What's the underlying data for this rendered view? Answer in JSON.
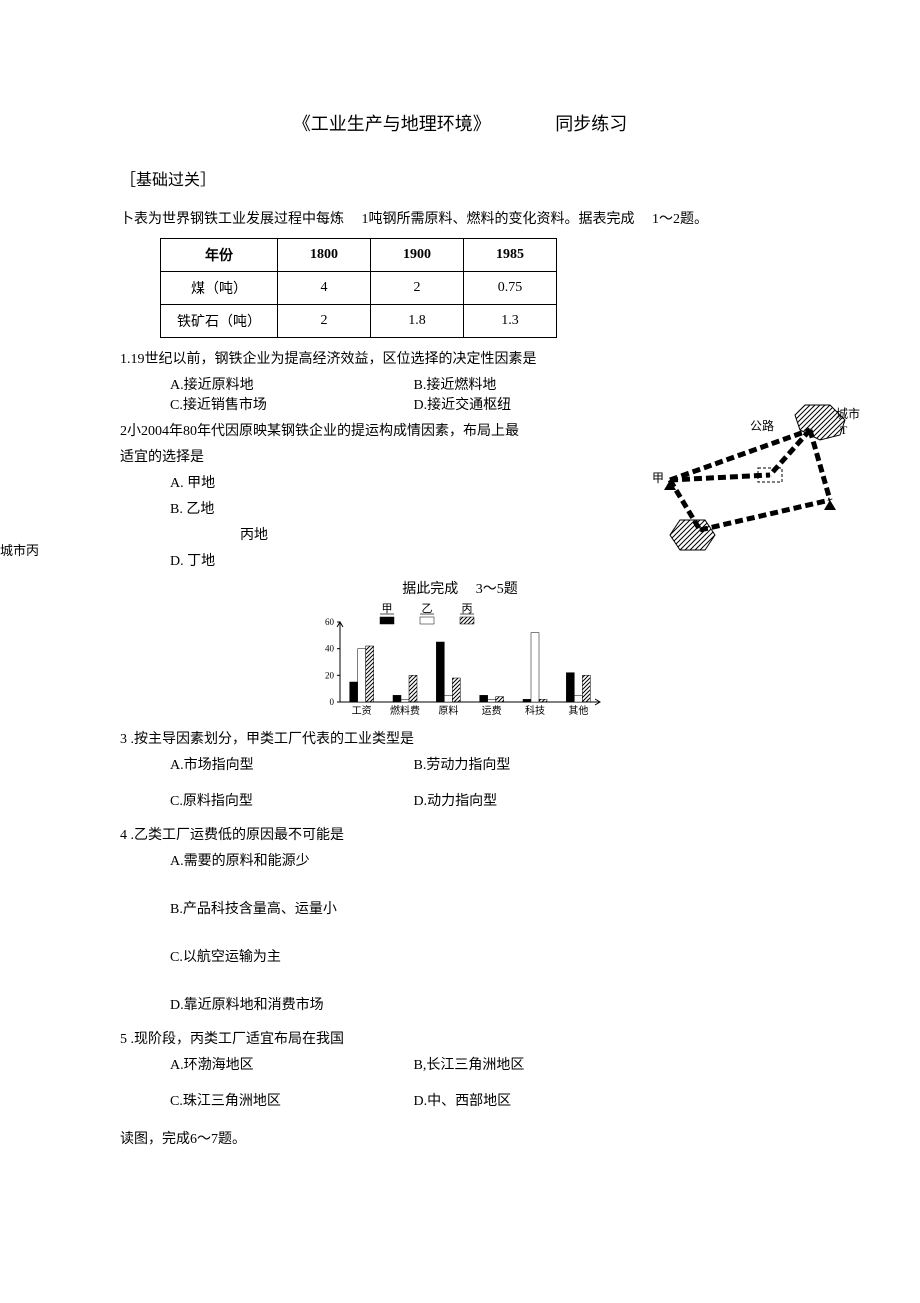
{
  "title": {
    "left": "《工业生产与地理环境》",
    "right": "同步练习"
  },
  "section_head": "［基础过关］",
  "intro1": {
    "pre": "卜表为世界钢铁工业发展过程中每炼",
    "mid": "1吨钢所需原料、燃料的变化资料。据表完成",
    "suf": "1〜2题。"
  },
  "table": {
    "headers": [
      "年份",
      "1800",
      "1900",
      "1985"
    ],
    "rows": [
      [
        "煤（吨）",
        "4",
        "2",
        "0.75"
      ],
      [
        "铁矿石（吨）",
        "2",
        "1.8",
        "1.3"
      ]
    ]
  },
  "q1": {
    "stem": "1.19世纪以前，钢铁企业为提高经济效益，区位选择的决定性因素是",
    "a": "A.接近原料地",
    "b": "B.接近燃料地",
    "c": "C.接近销售市场",
    "d": "D.接近交通枢纽"
  },
  "q2": {
    "stem": "2小2004年80年代因原映某钢铁企业的提运构成情因素，布局上最",
    "stem2": "适宜的选择是",
    "a": "A.  甲地",
    "b": "B.  乙地",
    "c": "丙地",
    "d": "D.  丁地"
  },
  "side_label": "城市丙",
  "map": {
    "city_label_right": "城市",
    "city_letter": "T",
    "road_label": "公路",
    "jia": "甲"
  },
  "q3intro": {
    "pre": "据此完成",
    "suf": "3〜5题"
  },
  "chart": {
    "legend": [
      "甲",
      "乙",
      "丙"
    ],
    "yticks": [
      "0",
      "20",
      "40",
      "60"
    ],
    "xlabels": [
      "工资",
      "燃料费",
      "原料",
      "运费",
      "科技",
      "其他"
    ],
    "series": {
      "jia": [
        15,
        5,
        45,
        5,
        2,
        22
      ],
      "yi": [
        40,
        2,
        5,
        2,
        52,
        5
      ],
      "bing": [
        42,
        20,
        18,
        4,
        2,
        20
      ]
    },
    "colors": {
      "jia": "#000000",
      "yi": "#ffffff",
      "bing_pattern": true
    }
  },
  "q3": {
    "stem": "3 .按主导因素划分，甲类工厂代表的工业类型是",
    "a": "A.市场指向型",
    "b": "B.劳动力指向型",
    "c": "C.原料指向型",
    "d": "D.动力指向型"
  },
  "q4": {
    "stem": "4 .乙类工厂运费低的原因最不可能是",
    "a": "A.需要的原料和能源少",
    "b": "B.产品科技含量高、运量小",
    "c": "C.以航空运输为主",
    "d": "D.靠近原料地和消费市场"
  },
  "q5": {
    "stem": "5 .现阶段，丙类工厂适宜布局在我国",
    "a": "A.环渤海地区",
    "b": "B,长江三角洲地区",
    "c": "C.珠江三角洲地区",
    "d": "D.中、西部地区"
  },
  "tail": "读图，完成6〜7题。"
}
